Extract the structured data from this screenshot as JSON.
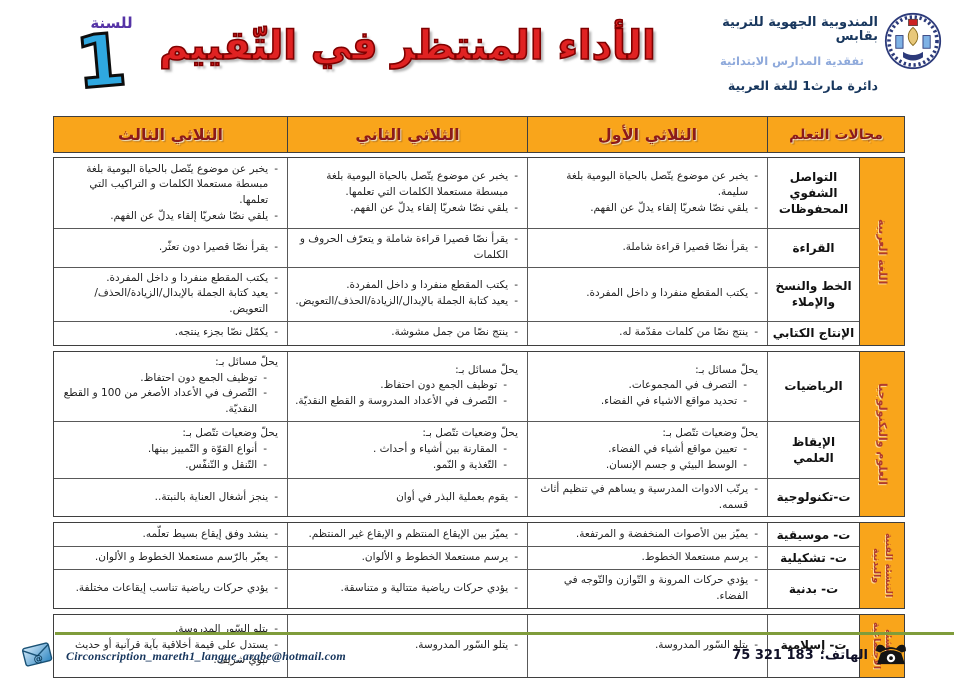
{
  "header": {
    "year_label": "للسنة",
    "year_number": "1",
    "title": "الأداء المنتظر في التّقييم",
    "org": {
      "line1": "المندوبية الجهوية للتربية بقابس",
      "line2": "تفقدية المدارس الابتدائية",
      "line3": "دائرة مارث1 للغة العربية"
    },
    "logo_icon": "gabes-education-emblem"
  },
  "table": {
    "headers": {
      "domains": "مجالات التعلم",
      "t1": "الثلاثي الأول",
      "t2": "الثلاثي الثاني",
      "t3": "الثلاثي الثالث"
    },
    "sections": [
      {
        "strip_lines": [
          "اللغة العربية"
        ],
        "rows": [
          {
            "domain_lines": [
              "التواصل الشفوي",
              "المحفوظات"
            ],
            "t1": {
              "items": [
                "يخبر عن موضوع يتّصل بالحياة اليومية بلغة سليمة.",
                "يلقي نصّا شعريّا إلقاء يدلّ عن الفهم."
              ]
            },
            "t2": {
              "items": [
                "يخبر عن موضوع يتّصل بالحياة اليومية بلغة مبسطة مستعملا الكلمات التي تعلمها.",
                "يلقي نصّا شعريّا إلقاء يدلّ عن الفهم."
              ]
            },
            "t3": {
              "items": [
                "يخبر عن موضوع يتّصل بالحياة اليومية بلغة مبسطة مستعملا الكلمات و التراكيب التي تعلمها.",
                "يلقي نصّا شعريّا إلقاء يدلّ عن الفهم."
              ]
            }
          },
          {
            "domain_lines": [
              "القراءة"
            ],
            "t1": {
              "items": [
                "يقرأ نصّا قصيرا قراءة شاملة."
              ]
            },
            "t2": {
              "items": [
                "يقرأ نصّا قصيرا قراءة شاملة و يتعرّف الحروف و الكلمات"
              ]
            },
            "t3": {
              "items": [
                "يقرأ نصّا قصيرا دون تعثّر."
              ]
            }
          },
          {
            "domain_lines": [
              "الخط والنسخ",
              "والإملاء"
            ],
            "t1": {
              "items": [
                "يكتب المقطع منفردا و داخل المفردة."
              ]
            },
            "t2": {
              "items": [
                "يكتب المقطع منفردا و داخل المفردة.",
                "يعيد كتابة الجملة بالإبدال/الزيادة/الحذف/التعويض."
              ]
            },
            "t3": {
              "items": [
                "يكتب المقطع منفردا و داخل المفردة.",
                "يعيد كتابة الجملة بالإبدال/الزيادة/الحذف/التعويض."
              ]
            }
          },
          {
            "domain_lines": [
              "الإنتاج الكتابي"
            ],
            "t1": {
              "items": [
                "ينتج نصّا من كلمات مقدّمة له."
              ]
            },
            "t2": {
              "items": [
                "ينتج نصّا من جمل مشوشة."
              ]
            },
            "t3": {
              "items": [
                "يكمّل نصّا بجزء ينتجه."
              ]
            }
          }
        ]
      },
      {
        "strip_lines": [
          "العلوم والتكنولوجيا"
        ],
        "rows": [
          {
            "domain_lines": [
              "الرياضيات"
            ],
            "t1": {
              "lead": "يحلّ مسائل بـ:",
              "items": [
                "التصرف في المجموعات.",
                "تحديد مواقع الاشياء في الفضاء."
              ]
            },
            "t2": {
              "lead": "يحلّ مسائل بـ:",
              "items": [
                "توظيف الجمع دون احتفاظ.",
                "التّصرف في الأعداد المدروسة و القطع النقديّة."
              ]
            },
            "t3": {
              "lead": "يحلّ مسائل بـ:",
              "items": [
                "توظيف الجمع دون احتفاظ.",
                "التّصرف في الأعداد الأصغر من 100 و القطع النقديّة."
              ]
            }
          },
          {
            "domain_lines": [
              "الإيقاظ العلمي"
            ],
            "t1": {
              "lead": "يحلّ وضعيات تتّصل بـ:",
              "items": [
                "تعيين مواقع أشياء في الفضاء.",
                "الوسط البيئي و جسم الإنسان."
              ]
            },
            "t2": {
              "lead": "يحلّ وضعيات تتّصل بـ:",
              "items": [
                "المقارنة بين أشياء و أحداث .",
                "التّغذية و النّمو."
              ]
            },
            "t3": {
              "lead": "يحلّ وضعيات تتّصل بـ:",
              "items": [
                "أنواع القوّة و التّمييز بينها.",
                "التّنقل و التّنفّس."
              ]
            }
          },
          {
            "domain_lines": [
              "ت-تكنولوجية"
            ],
            "t1": {
              "items": [
                "يرتّب الادوات المدرسية و يساهم في تنظيم أثاث قسمه."
              ]
            },
            "t2": {
              "items": [
                "يقوم بعملية البذر في أوان"
              ]
            },
            "t3": {
              "items": [
                "ينجز أشغال العناية بالنبتة.."
              ]
            }
          }
        ]
      },
      {
        "strip_lines": [
          "التنشئة الفنية",
          "والبدنية"
        ],
        "rows": [
          {
            "domain_lines": [
              "ت- موسيقية"
            ],
            "t1": {
              "items": [
                "يميّز بين الأصوات المنخفضة و المرتفعة."
              ]
            },
            "t2": {
              "items": [
                "يميّز بين الإيقاع المنتظم و الإيقاع غير المنتظم."
              ]
            },
            "t3": {
              "items": [
                "ينشد وفق إيقاع بسيط تعلّمه."
              ]
            }
          },
          {
            "domain_lines": [
              "ت- تشكيلية"
            ],
            "t1": {
              "items": [
                "يرسم مستعملا الخطوط."
              ]
            },
            "t2": {
              "items": [
                "يرسم مستعملا الخطوط و الألوان."
              ]
            },
            "t3": {
              "items": [
                "يعبّر بالرّسم مستعملا الخطوط و الألوان."
              ]
            }
          },
          {
            "domain_lines": [
              "ت- بدنية"
            ],
            "t1": {
              "items": [
                "يؤدي حركات المرونة و التّوازن والتّوجه في الفضاء."
              ]
            },
            "t2": {
              "items": [
                "يؤدي حركات رياضية متتالية و متناسقة."
              ]
            },
            "t3": {
              "items": [
                "يؤدي حركات رياضية تناسب إيقاعات مختلفة."
              ]
            }
          }
        ]
      },
      {
        "strip_lines": [
          "التنشئة",
          "الاجتماعية"
        ],
        "rows": [
          {
            "domain_lines": [
              "ت- إسلامية"
            ],
            "t1": {
              "items": [
                "يتلو السّور المدروسة."
              ]
            },
            "t2": {
              "items": [
                "يتلو السّور المدروسة."
              ]
            },
            "t3": {
              "items": [
                "يتلو السّور المدروسة.",
                "يستدل على قيمة أخلاقية بآية قرآنية أو حديث نبويّ شريف."
              ]
            }
          }
        ]
      }
    ]
  },
  "footer": {
    "email": "Circonscription_mareth1_langue_arabe@hotmail.com",
    "phone_label": "الهاتف:",
    "phone_number": "75 321 183",
    "mail_icon": "email-icon",
    "phone_icon": "telephone-icon"
  },
  "colors": {
    "header_orange": "#F9A51B",
    "title_red": "#E02222",
    "year_blue": "#2FA8E0",
    "year_label_purple": "#5533A6",
    "header_text_maroon": "#8B1A1A",
    "strip_text_red": "#B03A2E",
    "footer_line_green": "#7F9C3B",
    "org_navy": "#17365D"
  }
}
